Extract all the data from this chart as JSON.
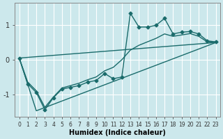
{
  "xlabel": "Humidex (Indice chaleur)",
  "bg_color": "#cce8ec",
  "grid_color": "#ffffff",
  "line_color": "#1a6b6b",
  "xlim": [
    -0.5,
    23.5
  ],
  "ylim": [
    -1.65,
    1.65
  ],
  "yticks": [
    -1,
    0,
    1
  ],
  "xticks": [
    0,
    1,
    2,
    3,
    4,
    5,
    6,
    7,
    8,
    9,
    10,
    11,
    12,
    13,
    14,
    15,
    16,
    17,
    18,
    19,
    20,
    21,
    22,
    23
  ],
  "series": [
    {
      "x": [
        0,
        1,
        2,
        3,
        4,
        5,
        6,
        7,
        8,
        9,
        10,
        11,
        12,
        13,
        14,
        15,
        16,
        17,
        18,
        19,
        20,
        21,
        22,
        23
      ],
      "y": [
        0.05,
        -0.7,
        -0.95,
        -1.45,
        -1.1,
        -0.85,
        -0.8,
        -0.75,
        -0.65,
        -0.6,
        -0.4,
        -0.55,
        -0.5,
        1.35,
        0.95,
        0.95,
        1.0,
        1.2,
        0.75,
        0.8,
        0.82,
        0.75,
        0.55,
        0.52
      ],
      "marker": "D",
      "markersize": 2.5,
      "linewidth": 1.0
    },
    {
      "x": [
        0,
        1,
        2,
        3,
        4,
        5,
        6,
        7,
        8,
        9,
        10,
        11,
        12,
        13,
        14,
        15,
        16,
        17,
        18,
        19,
        20,
        21,
        22,
        23
      ],
      "y": [
        0.05,
        -0.65,
        -0.9,
        -1.38,
        -1.08,
        -0.82,
        -0.75,
        -0.68,
        -0.58,
        -0.5,
        -0.32,
        -0.22,
        0.0,
        0.28,
        0.42,
        0.52,
        0.62,
        0.75,
        0.68,
        0.72,
        0.76,
        0.68,
        0.52,
        0.5
      ],
      "marker": null,
      "markersize": 0,
      "linewidth": 1.0
    },
    {
      "x": [
        0,
        2,
        23
      ],
      "y": [
        0.05,
        -1.48,
        0.5
      ],
      "marker": null,
      "markersize": 0,
      "linewidth": 1.0
    },
    {
      "x": [
        0,
        23
      ],
      "y": [
        0.05,
        0.5
      ],
      "marker": null,
      "markersize": 0,
      "linewidth": 1.0
    }
  ]
}
